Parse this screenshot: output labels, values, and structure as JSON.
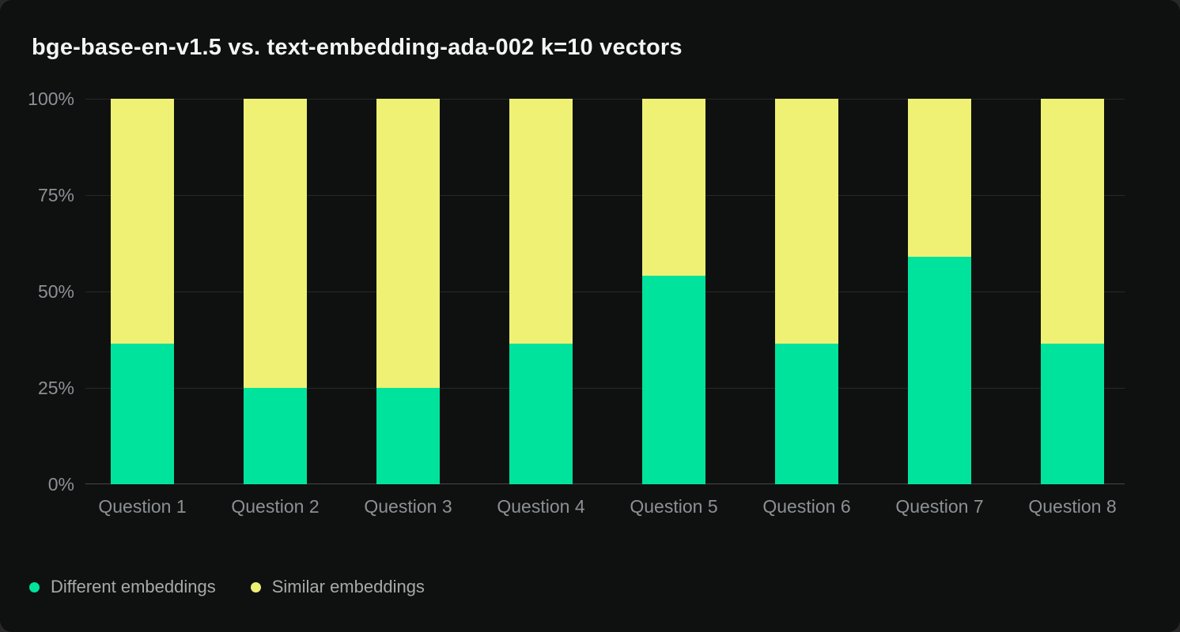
{
  "title": "bge-base-en-v1.5 vs. text-embedding-ada-002 k=10 vectors",
  "colors": {
    "page_background": "#282828",
    "card_background": "#0f1110",
    "grid_line": "#272927",
    "axis_line": "#454545",
    "axis_text": "#8c9195",
    "title_text": "#f3f4f4",
    "legend_text": "#a6aaa8",
    "different": "#00e39c",
    "similar": "#eef173"
  },
  "chart_data": {
    "type": "bar",
    "stacked": true,
    "units": "percent",
    "title": "bge-base-en-v1.5 vs. text-embedding-ada-002 k=10 vectors",
    "categories": [
      "Question 1",
      "Question 2",
      "Question 3",
      "Question 4",
      "Question 5",
      "Question 6",
      "Question 7",
      "Question 8"
    ],
    "series": [
      {
        "name": "Different embeddings",
        "color": "#00e39c",
        "values": [
          36.5,
          25,
          25,
          36.5,
          54,
          36.5,
          59,
          36.5
        ]
      },
      {
        "name": "Similar embeddings",
        "color": "#eef173",
        "values": [
          63.5,
          75,
          75,
          63.5,
          46,
          63.5,
          41,
          63.5
        ]
      }
    ],
    "ylim": [
      0,
      100
    ],
    "y_ticks": [
      {
        "value": 100,
        "label": "100%"
      },
      {
        "value": 75,
        "label": "75%"
      },
      {
        "value": 50,
        "label": "50%"
      },
      {
        "value": 25,
        "label": "25%"
      },
      {
        "value": 0,
        "label": "0%"
      }
    ],
    "grid": true,
    "legend_position": "bottom-left"
  },
  "legend": {
    "items": [
      {
        "label": "Different embeddings",
        "color": "#00e39c"
      },
      {
        "label": "Similar embeddings",
        "color": "#eef173"
      }
    ]
  }
}
